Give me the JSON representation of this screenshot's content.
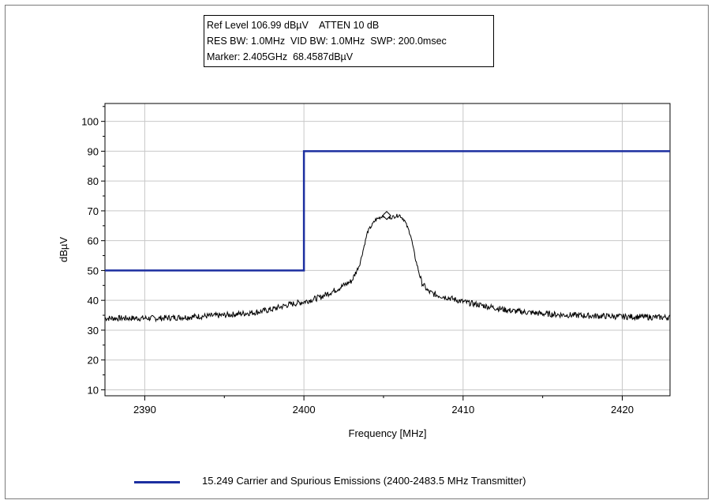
{
  "info": {
    "line1": "Ref Level 106.99 dBµV    ATTEN 10 dB",
    "line2": "RES BW: 1.0MHz  VID BW: 1.0MHz  SWP: 200.0msec",
    "line3": "Marker: 2.405GHz  68.4587dBµV"
  },
  "chart_data": {
    "type": "line",
    "xlabel": "Frequency [MHz]",
    "ylabel": "dBµV",
    "xlim": [
      2387.5,
      2423
    ],
    "ylim": [
      8,
      106
    ],
    "x_ticks": [
      2390,
      2400,
      2410,
      2420
    ],
    "x_tick_labels": [
      "2390",
      "2400",
      "2410",
      "2420"
    ],
    "y_ticks": [
      10,
      20,
      30,
      40,
      50,
      60,
      70,
      80,
      90,
      100
    ],
    "y_tick_labels": [
      "10",
      "20",
      "30",
      "40",
      "50",
      "60",
      "70",
      "80",
      "90",
      "100"
    ],
    "grid": true,
    "series": [
      {
        "name": "15.249 Carrier and Spurious Emissions (2400-2483.5 MHz Transmitter)",
        "role": "limit",
        "color": "#1c2fa0",
        "x": [
          2387.5,
          2400,
          2400,
          2423
        ],
        "y": [
          50,
          50,
          90,
          90
        ]
      },
      {
        "role": "trace",
        "color": "#000000",
        "x": [
          2387.5,
          2389,
          2391,
          2393,
          2395,
          2397,
          2398,
          2399,
          2400,
          2401,
          2402,
          2402.5,
          2403,
          2403.5,
          2404,
          2404.5,
          2405,
          2405.3,
          2405.6,
          2406,
          2406.3,
          2406.7,
          2407,
          2407.4,
          2407.8,
          2408.2,
          2409,
          2410,
          2411,
          2412,
          2413,
          2414,
          2415,
          2416,
          2417,
          2418,
          2419,
          2420,
          2421,
          2422,
          2423
        ],
        "y": [
          34,
          34,
          34,
          34.5,
          35,
          36,
          37,
          38.5,
          39.5,
          41,
          43.5,
          45,
          46.5,
          52,
          63,
          67,
          68.5,
          67.5,
          68,
          68.6,
          67,
          62,
          54,
          46,
          43,
          42,
          41,
          39.5,
          38.5,
          37.5,
          36.5,
          36,
          35.5,
          35.2,
          35,
          34.8,
          34.7,
          34.5,
          34.5,
          34.3,
          34.3
        ]
      }
    ],
    "marker": {
      "x": 2405.2,
      "y": 68.4587
    }
  }
}
